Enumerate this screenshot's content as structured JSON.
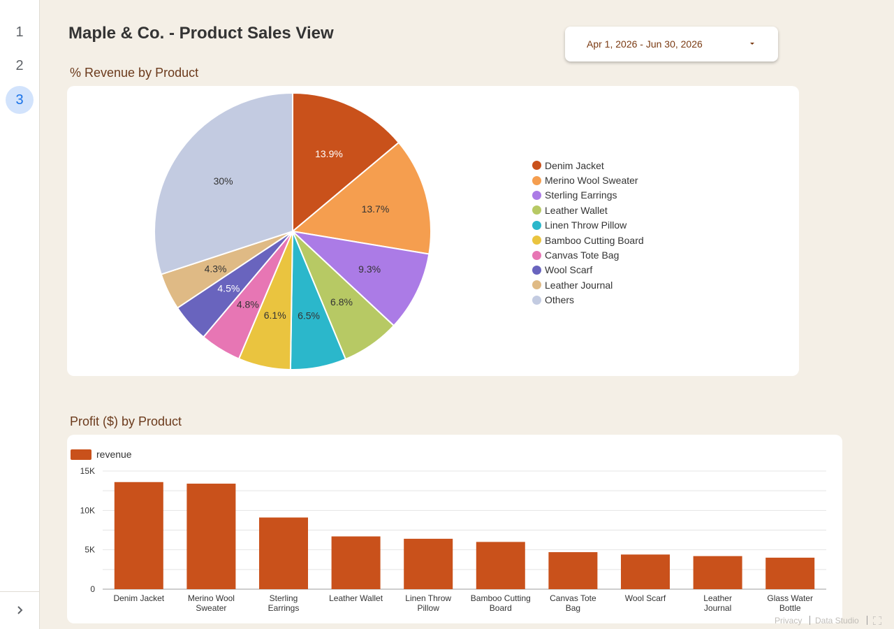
{
  "sidebar": {
    "pages": [
      "1",
      "2",
      "3"
    ],
    "active_page": "3",
    "expand_icon": "chevron-right-icon"
  },
  "header": {
    "title": "Maple & Co. - Product Sales View"
  },
  "date_range": {
    "value": "Apr 1, 2026 - Jun 30, 2026",
    "icon": "caret-down-icon"
  },
  "pie_section": {
    "title": "% Revenue by Product"
  },
  "bar_section": {
    "title": "Profit ($) by Product"
  },
  "footer": {
    "privacy": "Privacy",
    "data_studio": "Data Studio",
    "fullscreen_icon": "fullscreen-icon"
  },
  "chart_data": [
    {
      "type": "pie",
      "title": "% Revenue by Product",
      "slices": [
        {
          "label": "Denim Jacket",
          "value": 13.9,
          "display": "13.9%",
          "color": "#c9511b",
          "label_color": "#ffffff"
        },
        {
          "label": "Merino Wool Sweater",
          "value": 13.7,
          "display": "13.7%",
          "color": "#f59e4f",
          "label_color": "#333333"
        },
        {
          "label": "Sterling Earrings",
          "value": 9.3,
          "display": "9.3%",
          "color": "#ab7be6",
          "label_color": "#333333"
        },
        {
          "label": "Leather Wallet",
          "value": 6.8,
          "display": "6.8%",
          "color": "#b7c964",
          "label_color": "#333333"
        },
        {
          "label": "Linen Throw Pillow",
          "value": 6.5,
          "display": "6.5%",
          "color": "#2bb7cb",
          "label_color": "#333333"
        },
        {
          "label": "Bamboo Cutting Board",
          "value": 6.1,
          "display": "6.1%",
          "color": "#eac43f",
          "label_color": "#333333"
        },
        {
          "label": "Canvas Tote Bag",
          "value": 4.8,
          "display": "4.8%",
          "color": "#e776b4",
          "label_color": "#333333"
        },
        {
          "label": "Wool Scarf",
          "value": 4.5,
          "display": "4.5%",
          "color": "#6964be",
          "label_color": "#ffffff"
        },
        {
          "label": "Leather Journal",
          "value": 4.3,
          "display": "4.3%",
          "color": "#dfba85",
          "label_color": "#333333"
        },
        {
          "label": "Others",
          "value": 30.0,
          "display": "30%",
          "color": "#c3cbe1",
          "label_color": "#333333"
        }
      ],
      "legend": "right"
    },
    {
      "type": "bar",
      "title": "Profit ($) by Product",
      "categories": [
        "Denim Jacket",
        "Merino Wool Sweater",
        "Sterling Earrings",
        "Leather Wallet",
        "Linen Throw Pillow",
        "Bamboo Cutting Board",
        "Canvas Tote Bag",
        "Wool Scarf",
        "Leather Journal",
        "Glass Water Bottle"
      ],
      "series": [
        {
          "name": "revenue",
          "color": "#c9511b",
          "values": [
            13600,
            13400,
            9100,
            6700,
            6400,
            6000,
            4700,
            4400,
            4200,
            4000
          ]
        }
      ],
      "ylim": [
        0,
        15000
      ],
      "y_ticks": [
        0,
        5000,
        10000,
        15000
      ],
      "y_tick_labels": [
        "0",
        "5K",
        "10K",
        "15K"
      ],
      "grid": true,
      "legend": "top-left"
    }
  ]
}
